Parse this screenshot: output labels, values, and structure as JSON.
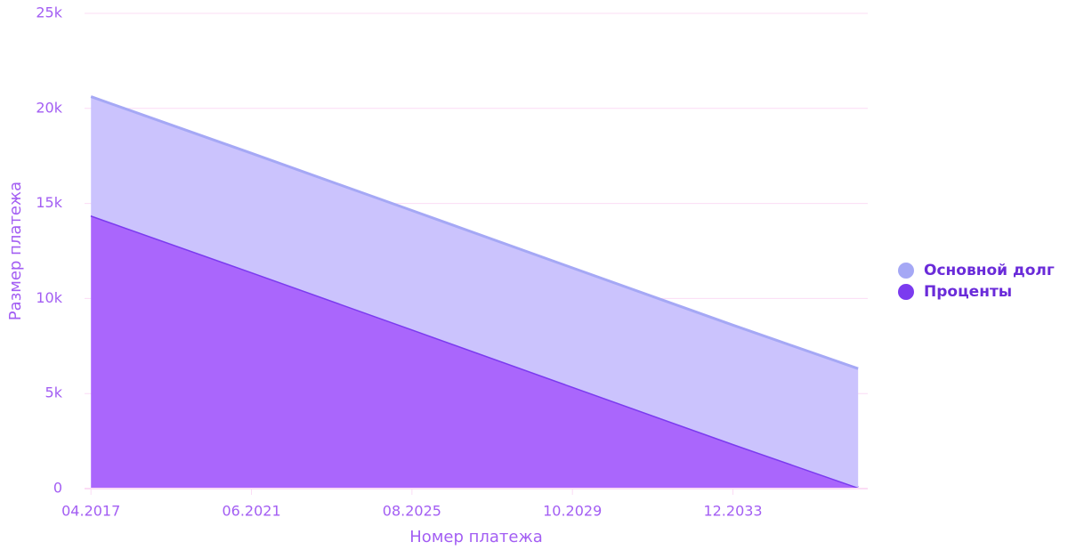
{
  "chart_data": {
    "type": "area",
    "stacked": true,
    "x_label": "Номер платежа",
    "y_label": "Размер платежа",
    "x": [
      0,
      50,
      100,
      150,
      200,
      239
    ],
    "series": [
      {
        "name": "Основной долг",
        "color": "#a5a8f5",
        "fill": "#cbc3fd",
        "values": [
          6250,
          6250,
          6250,
          6250,
          6250,
          6250
        ]
      },
      {
        "name": "Проценты",
        "color": "#7b3bef",
        "fill": "#aa66fc",
        "values": [
          14370,
          11390,
          8380,
          5360,
          2350,
          60
        ]
      }
    ],
    "xlim": [
      -2,
      242
    ],
    "xticks": [
      {
        "value": 0,
        "label": "04.2017"
      },
      {
        "value": 50,
        "label": "06.2021"
      },
      {
        "value": 100,
        "label": "08.2025"
      },
      {
        "value": 150,
        "label": "10.2029"
      },
      {
        "value": 200,
        "label": "12.2033"
      }
    ],
    "ylim": [
      0,
      25000
    ],
    "yticks": [
      {
        "value": 0,
        "label": "0"
      },
      {
        "value": 5000,
        "label": "5k"
      },
      {
        "value": 10000,
        "label": "10k"
      },
      {
        "value": 15000,
        "label": "15k"
      },
      {
        "value": 20000,
        "label": "20k"
      },
      {
        "value": 25000,
        "label": "25k"
      }
    ],
    "grid": true,
    "legend": "right"
  }
}
